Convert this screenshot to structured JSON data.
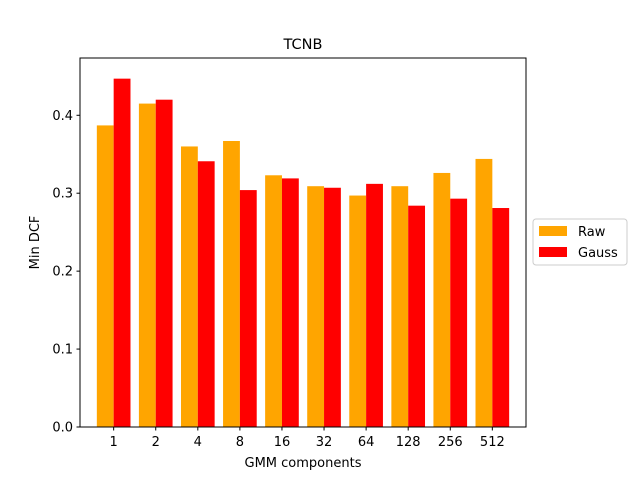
{
  "chart_data": {
    "type": "bar",
    "title": "TCNB",
    "xlabel": "GMM components",
    "ylabel": "Min DCF",
    "categories": [
      "1",
      "2",
      "4",
      "8",
      "16",
      "32",
      "64",
      "128",
      "256",
      "512"
    ],
    "series": [
      {
        "name": "Raw",
        "color": "#ffa500",
        "values": [
          0.387,
          0.415,
          0.36,
          0.367,
          0.323,
          0.309,
          0.297,
          0.309,
          0.326,
          0.344
        ]
      },
      {
        "name": "Gauss",
        "color": "#ff0000",
        "values": [
          0.447,
          0.42,
          0.341,
          0.304,
          0.319,
          0.307,
          0.312,
          0.284,
          0.293,
          0.281
        ]
      }
    ],
    "ylim": [
      0,
      0.4735
    ],
    "yticks": [
      0.0,
      0.1,
      0.2,
      0.3,
      0.4
    ],
    "ytick_labels": [
      "0.0",
      "0.1",
      "0.2",
      "0.3",
      "0.4"
    ],
    "grid": false,
    "legend_position": "right, outside the plot"
  }
}
